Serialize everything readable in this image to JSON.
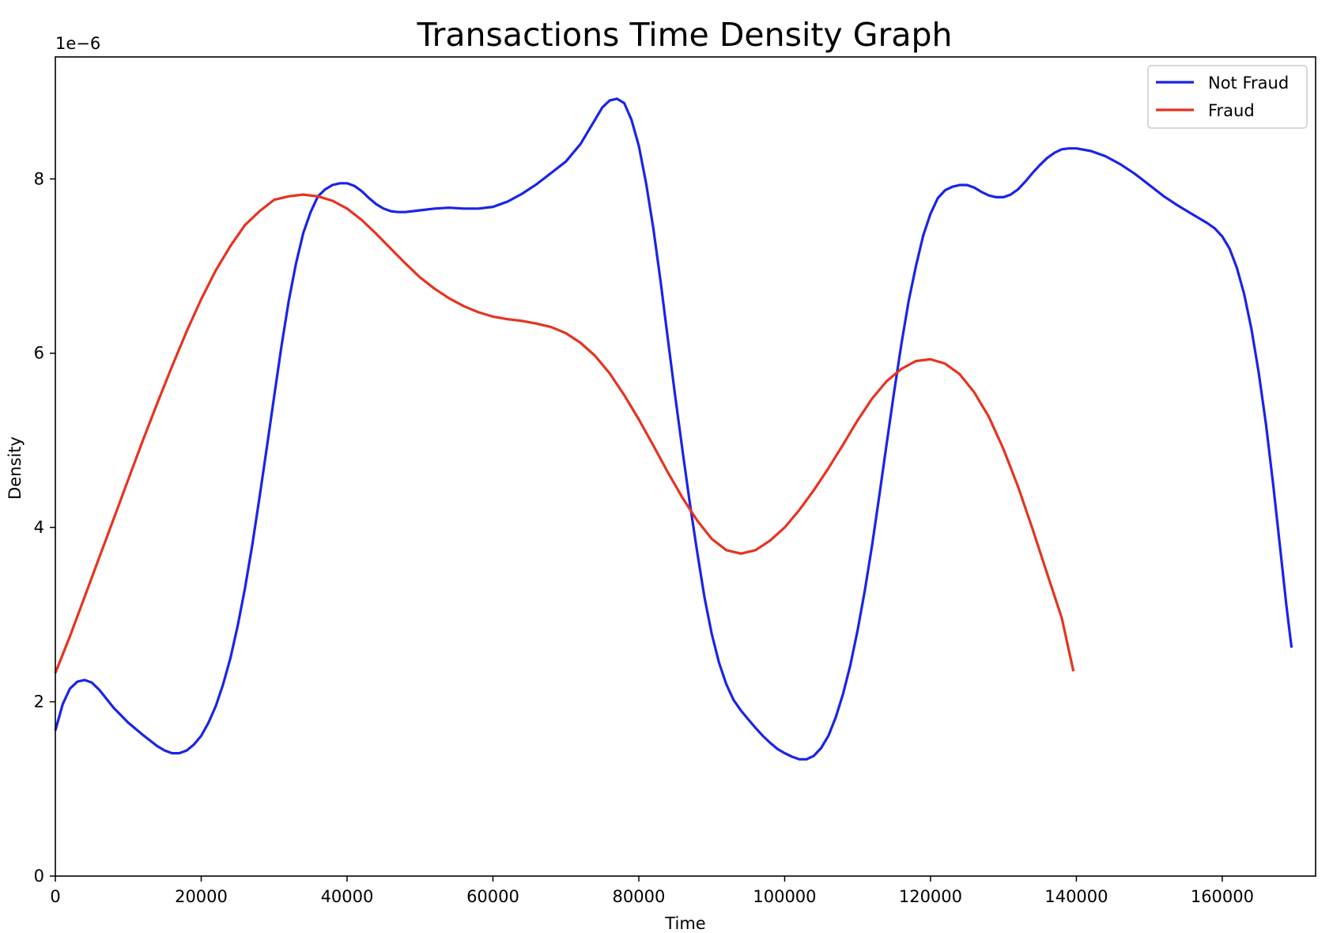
{
  "chart_data": {
    "type": "line",
    "title": "Transactions Time Density Graph",
    "xlabel": "Time",
    "ylabel": "Density",
    "y_offset_label": "1e−6",
    "xlim": [
      0,
      172800
    ],
    "ylim": [
      0,
      9.4
    ],
    "x_ticks": [
      0,
      20000,
      40000,
      60000,
      80000,
      100000,
      120000,
      140000,
      160000
    ],
    "x_tick_labels": [
      "0",
      "20000",
      "40000",
      "60000",
      "80000",
      "100000",
      "120000",
      "140000",
      "160000"
    ],
    "y_ticks": [
      0,
      2,
      4,
      6,
      8
    ],
    "y_tick_labels": [
      "0",
      "2",
      "4",
      "6",
      "8"
    ],
    "grid": false,
    "legend_position": "top-right",
    "series": [
      {
        "name": "Not Fraud",
        "color": "#1a24e6",
        "points": [
          [
            0,
            1.67
          ],
          [
            1000,
            1.97
          ],
          [
            2000,
            2.15
          ],
          [
            3000,
            2.23
          ],
          [
            4000,
            2.25
          ],
          [
            5000,
            2.22
          ],
          [
            6000,
            2.14
          ],
          [
            8000,
            1.93
          ],
          [
            10000,
            1.76
          ],
          [
            12000,
            1.62
          ],
          [
            14000,
            1.49
          ],
          [
            15000,
            1.44
          ],
          [
            16000,
            1.41
          ],
          [
            17000,
            1.41
          ],
          [
            18000,
            1.44
          ],
          [
            19000,
            1.51
          ],
          [
            20000,
            1.61
          ],
          [
            21000,
            1.76
          ],
          [
            22000,
            1.95
          ],
          [
            23000,
            2.2
          ],
          [
            24000,
            2.5
          ],
          [
            25000,
            2.87
          ],
          [
            26000,
            3.3
          ],
          [
            27000,
            3.8
          ],
          [
            28000,
            4.35
          ],
          [
            29000,
            4.92
          ],
          [
            30000,
            5.5
          ],
          [
            31000,
            6.08
          ],
          [
            32000,
            6.6
          ],
          [
            33000,
            7.03
          ],
          [
            34000,
            7.38
          ],
          [
            35000,
            7.62
          ],
          [
            36000,
            7.8
          ],
          [
            37000,
            7.88
          ],
          [
            38000,
            7.93
          ],
          [
            39000,
            7.95
          ],
          [
            40000,
            7.95
          ],
          [
            41000,
            7.92
          ],
          [
            42000,
            7.86
          ],
          [
            43000,
            7.78
          ],
          [
            44000,
            7.71
          ],
          [
            45000,
            7.66
          ],
          [
            46000,
            7.63
          ],
          [
            47000,
            7.62
          ],
          [
            48000,
            7.62
          ],
          [
            50000,
            7.64
          ],
          [
            52000,
            7.66
          ],
          [
            54000,
            7.67
          ],
          [
            56000,
            7.66
          ],
          [
            58000,
            7.66
          ],
          [
            60000,
            7.68
          ],
          [
            62000,
            7.74
          ],
          [
            64000,
            7.83
          ],
          [
            66000,
            7.94
          ],
          [
            68000,
            8.07
          ],
          [
            70000,
            8.2
          ],
          [
            72000,
            8.4
          ],
          [
            73000,
            8.54
          ],
          [
            74000,
            8.68
          ],
          [
            75000,
            8.82
          ],
          [
            76000,
            8.9
          ],
          [
            77000,
            8.92
          ],
          [
            78000,
            8.87
          ],
          [
            79000,
            8.68
          ],
          [
            80000,
            8.38
          ],
          [
            81000,
            7.95
          ],
          [
            82000,
            7.43
          ],
          [
            83000,
            6.82
          ],
          [
            84000,
            6.15
          ],
          [
            85000,
            5.5
          ],
          [
            86000,
            4.88
          ],
          [
            87000,
            4.28
          ],
          [
            88000,
            3.72
          ],
          [
            89000,
            3.2
          ],
          [
            90000,
            2.78
          ],
          [
            91000,
            2.45
          ],
          [
            92000,
            2.2
          ],
          [
            93000,
            2.02
          ],
          [
            94000,
            1.9
          ],
          [
            95000,
            1.8
          ],
          [
            96000,
            1.7
          ],
          [
            97000,
            1.61
          ],
          [
            98000,
            1.53
          ],
          [
            99000,
            1.46
          ],
          [
            100000,
            1.41
          ],
          [
            101000,
            1.37
          ],
          [
            102000,
            1.34
          ],
          [
            103000,
            1.34
          ],
          [
            104000,
            1.38
          ],
          [
            105000,
            1.47
          ],
          [
            106000,
            1.61
          ],
          [
            107000,
            1.82
          ],
          [
            108000,
            2.09
          ],
          [
            109000,
            2.42
          ],
          [
            110000,
            2.82
          ],
          [
            111000,
            3.28
          ],
          [
            112000,
            3.8
          ],
          [
            113000,
            4.38
          ],
          [
            114000,
            4.97
          ],
          [
            115000,
            5.55
          ],
          [
            116000,
            6.1
          ],
          [
            117000,
            6.6
          ],
          [
            118000,
            7.0
          ],
          [
            119000,
            7.35
          ],
          [
            120000,
            7.6
          ],
          [
            121000,
            7.78
          ],
          [
            122000,
            7.87
          ],
          [
            123000,
            7.91
          ],
          [
            124000,
            7.93
          ],
          [
            125000,
            7.93
          ],
          [
            126000,
            7.9
          ],
          [
            127000,
            7.85
          ],
          [
            128000,
            7.81
          ],
          [
            129000,
            7.79
          ],
          [
            130000,
            7.79
          ],
          [
            131000,
            7.82
          ],
          [
            132000,
            7.88
          ],
          [
            133000,
            7.97
          ],
          [
            134000,
            8.07
          ],
          [
            135000,
            8.16
          ],
          [
            136000,
            8.24
          ],
          [
            137000,
            8.3
          ],
          [
            138000,
            8.34
          ],
          [
            139000,
            8.35
          ],
          [
            140000,
            8.35
          ],
          [
            142000,
            8.32
          ],
          [
            144000,
            8.26
          ],
          [
            146000,
            8.17
          ],
          [
            148000,
            8.06
          ],
          [
            150000,
            7.93
          ],
          [
            152000,
            7.8
          ],
          [
            154000,
            7.69
          ],
          [
            156000,
            7.59
          ],
          [
            158000,
            7.49
          ],
          [
            159000,
            7.43
          ],
          [
            160000,
            7.34
          ],
          [
            161000,
            7.2
          ],
          [
            162000,
            6.98
          ],
          [
            163000,
            6.68
          ],
          [
            164000,
            6.28
          ],
          [
            165000,
            5.78
          ],
          [
            166000,
            5.18
          ],
          [
            167000,
            4.48
          ],
          [
            168000,
            3.72
          ],
          [
            168800,
            3.1
          ],
          [
            169500,
            2.62
          ]
        ]
      },
      {
        "name": "Fraud",
        "color": "#e63320",
        "points": [
          [
            0,
            2.33
          ],
          [
            2000,
            2.75
          ],
          [
            4000,
            3.2
          ],
          [
            6000,
            3.65
          ],
          [
            8000,
            4.1
          ],
          [
            10000,
            4.55
          ],
          [
            12000,
            5.0
          ],
          [
            14000,
            5.43
          ],
          [
            16000,
            5.85
          ],
          [
            18000,
            6.25
          ],
          [
            20000,
            6.62
          ],
          [
            22000,
            6.95
          ],
          [
            24000,
            7.23
          ],
          [
            26000,
            7.47
          ],
          [
            28000,
            7.63
          ],
          [
            30000,
            7.76
          ],
          [
            32000,
            7.8
          ],
          [
            34000,
            7.82
          ],
          [
            36000,
            7.8
          ],
          [
            38000,
            7.75
          ],
          [
            40000,
            7.66
          ],
          [
            42000,
            7.53
          ],
          [
            44000,
            7.37
          ],
          [
            46000,
            7.2
          ],
          [
            48000,
            7.03
          ],
          [
            50000,
            6.87
          ],
          [
            52000,
            6.74
          ],
          [
            54000,
            6.63
          ],
          [
            56000,
            6.54
          ],
          [
            58000,
            6.47
          ],
          [
            60000,
            6.42
          ],
          [
            62000,
            6.39
          ],
          [
            64000,
            6.37
          ],
          [
            66000,
            6.34
          ],
          [
            68000,
            6.3
          ],
          [
            70000,
            6.23
          ],
          [
            72000,
            6.12
          ],
          [
            74000,
            5.97
          ],
          [
            76000,
            5.77
          ],
          [
            78000,
            5.52
          ],
          [
            80000,
            5.24
          ],
          [
            82000,
            4.94
          ],
          [
            84000,
            4.63
          ],
          [
            86000,
            4.34
          ],
          [
            88000,
            4.08
          ],
          [
            90000,
            3.87
          ],
          [
            92000,
            3.74
          ],
          [
            94000,
            3.7
          ],
          [
            96000,
            3.74
          ],
          [
            98000,
            3.85
          ],
          [
            100000,
            4.0
          ],
          [
            102000,
            4.2
          ],
          [
            104000,
            4.43
          ],
          [
            106000,
            4.68
          ],
          [
            108000,
            4.95
          ],
          [
            110000,
            5.23
          ],
          [
            112000,
            5.48
          ],
          [
            114000,
            5.68
          ],
          [
            116000,
            5.82
          ],
          [
            118000,
            5.91
          ],
          [
            120000,
            5.93
          ],
          [
            122000,
            5.88
          ],
          [
            124000,
            5.76
          ],
          [
            126000,
            5.55
          ],
          [
            128000,
            5.27
          ],
          [
            130000,
            4.9
          ],
          [
            132000,
            4.47
          ],
          [
            134000,
            3.98
          ],
          [
            136000,
            3.47
          ],
          [
            138000,
            2.96
          ],
          [
            139600,
            2.35
          ]
        ]
      }
    ]
  }
}
